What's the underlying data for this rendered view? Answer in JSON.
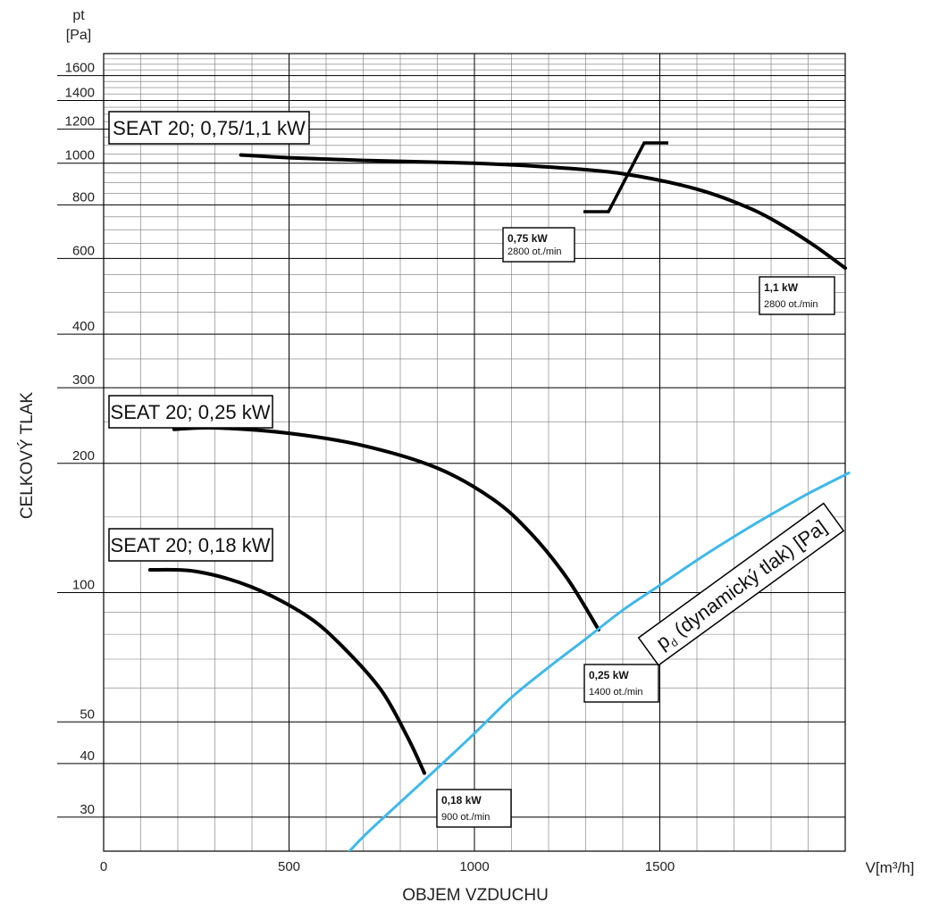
{
  "chart_data": {
    "type": "line",
    "title": "",
    "xlabel": "OBJEM VZDUCHU",
    "x_unit_label": "V[m³/h]",
    "ylabel": "CELKOVÝ TLAK",
    "y_unit_label_top": "pt",
    "y_unit_label_bottom": "[Pa]",
    "xlim": [
      0,
      2000
    ],
    "ylim": [
      25,
      1800
    ],
    "y_scale": "log",
    "grid": true,
    "x_ticks": [
      "0",
      "500",
      "1000",
      "1500"
    ],
    "x_tick_values": [
      0,
      500,
      1000,
      1500
    ],
    "y_ticks": [
      "30",
      "40",
      "50",
      "100",
      "200",
      "300",
      "400",
      "600",
      "800",
      "1000",
      "1200",
      "1400",
      "1600"
    ],
    "y_tick_values": [
      30,
      40,
      50,
      100,
      200,
      300,
      400,
      600,
      800,
      1000,
      1200,
      1400,
      1600
    ],
    "series": [
      {
        "name": "SEAT 20; 0,75/1,1 kW",
        "color": "#000000",
        "x": [
          370,
          500,
          700,
          1000,
          1200,
          1400,
          1600,
          1750,
          1850,
          1920,
          2000
        ],
        "y": [
          1045,
          1030,
          1015,
          1000,
          980,
          945,
          870,
          780,
          700,
          640,
          570
        ]
      },
      {
        "name": "SEAT 20; 0,25 kW",
        "color": "#000000",
        "x": [
          190,
          300,
          500,
          700,
          900,
          1050,
          1150,
          1250,
          1335
        ],
        "y": [
          240,
          242,
          235,
          220,
          195,
          165,
          138,
          108,
          82
        ]
      },
      {
        "name": "SEAT 20; 0,18 kW",
        "color": "#000000",
        "x": [
          125,
          250,
          400,
          550,
          650,
          750,
          820,
          865
        ],
        "y": [
          113,
          112,
          103,
          88,
          74,
          59,
          46,
          38
        ]
      },
      {
        "name": "pd (dynamický tlak) [Pa]",
        "color": "#3fb8ea",
        "x": [
          635,
          700,
          800,
          900,
          1000,
          1100,
          1200,
          1300,
          1400,
          1500,
          1600,
          1700,
          1800,
          1900,
          2010
        ],
        "y": [
          23.5,
          27,
          32.5,
          39,
          47,
          57,
          67,
          78,
          91,
          104,
          119,
          135,
          152,
          170,
          190
        ]
      }
    ],
    "series_labels": {
      "high": "SEAT 20; 0,75/1,1 kW",
      "mid": "SEAT 20; 0,25 kW",
      "low": "SEAT 20; 0,18 kW",
      "pd_prefix": "p",
      "pd_sub": "d",
      "pd_rest": " (dynamický tlak) [Pa]"
    },
    "motor_markers": [
      {
        "power": "0,75  kW",
        "speed": "2800 ot./min"
      },
      {
        "power": "1,1  kW",
        "speed": "2800 ot./min"
      },
      {
        "power": "0,25  kW",
        "speed": "1400 ot./min"
      },
      {
        "power": "0,18  kW",
        "speed": "900 ot./min"
      }
    ]
  }
}
